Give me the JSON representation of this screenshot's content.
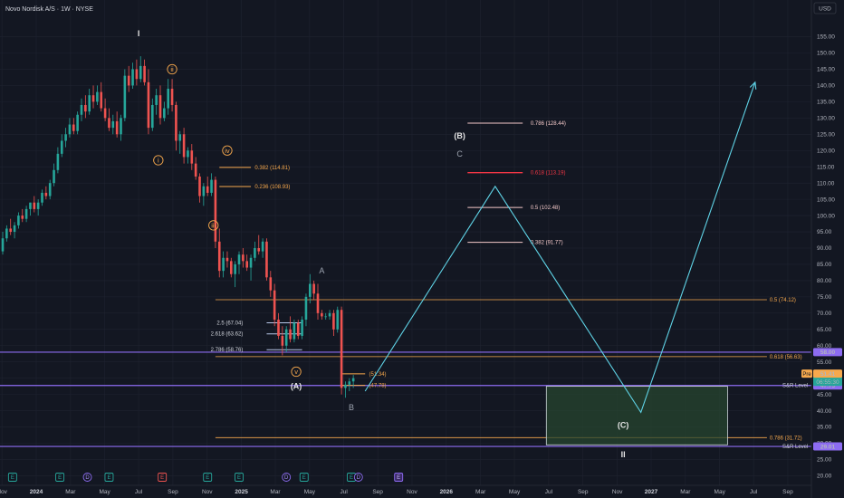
{
  "title": "Novo Nordisk A/S · 1W · NYSE",
  "currency": "USD",
  "colors": {
    "bg": "#131722",
    "up": "#26a69a",
    "down": "#ef5350",
    "orange": "#f7a94d",
    "purple": "#8d6cf2",
    "cyan": "#5fd3e6",
    "red": "#f23645",
    "grid": "#1f2330"
  },
  "chart_data": {
    "type": "candlestick",
    "ylim": [
      19,
      161
    ],
    "yticks": [
      20,
      25,
      30,
      35,
      40,
      45,
      50,
      55,
      60,
      65,
      70,
      75,
      80,
      85,
      90,
      95,
      100,
      105,
      110,
      115,
      120,
      125,
      130,
      135,
      140,
      145,
      150,
      155
    ],
    "xticks": [
      {
        "label": "Nov",
        "w": -0.2,
        "bold": false
      },
      {
        "label": "2024",
        "w": 8.5,
        "bold": true
      },
      {
        "label": "Mar",
        "w": 17.2,
        "bold": false
      },
      {
        "label": "May",
        "w": 25.9,
        "bold": false
      },
      {
        "label": "Jul",
        "w": 34.5,
        "bold": false
      },
      {
        "label": "Sep",
        "w": 43.2,
        "bold": false
      },
      {
        "label": "Nov",
        "w": 51.9,
        "bold": false
      },
      {
        "label": "2025",
        "w": 60.6,
        "bold": true
      },
      {
        "label": "Mar",
        "w": 69.2,
        "bold": false
      },
      {
        "label": "May",
        "w": 77.9,
        "bold": false
      },
      {
        "label": "Jul",
        "w": 86.6,
        "bold": false
      },
      {
        "label": "Sep",
        "w": 95.2,
        "bold": false
      },
      {
        "label": "Nov",
        "w": 103.9,
        "bold": false
      },
      {
        "label": "2026",
        "w": 112.6,
        "bold": true
      },
      {
        "label": "Mar",
        "w": 121.3,
        "bold": false
      },
      {
        "label": "May",
        "w": 129.9,
        "bold": false
      },
      {
        "label": "Jul",
        "w": 138.6,
        "bold": false
      },
      {
        "label": "Sep",
        "w": 147.3,
        "bold": false
      },
      {
        "label": "Nov",
        "w": 156,
        "bold": false
      },
      {
        "label": "2027",
        "w": 164.6,
        "bold": true
      },
      {
        "label": "Mar",
        "w": 173.3,
        "bold": false
      },
      {
        "label": "May",
        "w": 182,
        "bold": false
      },
      {
        "label": "Jul",
        "w": 190.6,
        "bold": false
      },
      {
        "label": "Sep",
        "w": 199.3,
        "bold": false
      }
    ],
    "candles": [
      [
        0,
        89,
        95,
        88,
        93
      ],
      [
        1,
        93,
        97,
        92,
        96
      ],
      [
        2,
        96,
        99,
        94,
        95
      ],
      [
        3,
        95,
        98,
        93,
        97
      ],
      [
        4,
        97,
        101,
        96,
        100
      ],
      [
        5,
        100,
        102,
        98,
        99
      ],
      [
        6,
        99,
        103,
        98,
        102
      ],
      [
        7,
        102,
        104,
        100,
        104
      ],
      [
        8,
        104,
        106,
        101,
        102
      ],
      [
        9,
        102,
        105,
        100,
        104
      ],
      [
        10,
        104,
        108,
        103,
        107
      ],
      [
        11,
        107,
        109,
        105,
        106
      ],
      [
        12,
        106,
        111,
        105,
        110
      ],
      [
        13,
        110,
        116,
        109,
        114
      ],
      [
        14,
        114,
        121,
        113,
        119
      ],
      [
        15,
        119,
        125,
        118,
        123
      ],
      [
        16,
        123,
        127,
        121,
        125
      ],
      [
        17,
        125,
        130,
        124,
        128
      ],
      [
        18,
        128,
        130,
        125,
        126
      ],
      [
        19,
        126,
        132,
        125,
        131
      ],
      [
        20,
        131,
        136,
        129,
        134
      ],
      [
        21,
        134,
        137,
        130,
        132
      ],
      [
        22,
        132,
        139,
        131,
        137
      ],
      [
        23,
        137,
        140,
        133,
        135
      ],
      [
        24,
        135,
        140,
        134,
        138
      ],
      [
        25,
        138,
        141,
        132,
        133
      ],
      [
        26,
        133,
        136,
        129,
        130
      ],
      [
        27,
        130,
        133,
        126,
        127
      ],
      [
        28,
        127,
        131,
        125,
        129
      ],
      [
        29,
        129,
        132,
        124,
        125
      ],
      [
        30,
        125,
        131,
        123,
        130
      ],
      [
        31,
        130,
        145,
        129,
        143
      ],
      [
        32,
        143,
        146,
        138,
        140
      ],
      [
        33,
        140,
        147,
        139,
        145
      ],
      [
        34,
        145,
        148,
        140,
        142
      ],
      [
        35,
        142,
        149,
        141,
        146
      ],
      [
        36,
        146,
        148,
        140,
        141
      ],
      [
        37,
        141,
        145,
        125,
        127
      ],
      [
        38,
        127,
        136,
        126,
        134
      ],
      [
        39,
        134,
        139,
        131,
        137
      ],
      [
        40,
        137,
        140,
        128,
        130
      ],
      [
        41,
        130,
        135,
        129,
        133
      ],
      [
        42,
        133,
        142,
        131,
        139
      ],
      [
        43,
        139,
        142,
        132,
        134
      ],
      [
        44,
        134,
        135,
        120,
        123
      ],
      [
        45,
        123,
        126,
        119,
        125
      ],
      [
        46,
        125,
        127,
        116,
        118
      ],
      [
        47,
        118,
        121,
        116,
        120
      ],
      [
        48,
        120,
        122,
        114,
        116
      ],
      [
        49,
        116,
        118,
        111,
        112
      ],
      [
        50,
        112,
        113,
        104,
        106
      ],
      [
        51,
        106,
        110,
        103,
        109
      ],
      [
        52,
        109,
        112,
        106,
        107
      ],
      [
        53,
        107,
        113,
        106,
        111
      ],
      [
        54,
        111,
        112,
        90,
        92
      ],
      [
        55,
        92,
        96,
        81,
        83
      ],
      [
        56,
        83,
        89,
        81,
        87
      ],
      [
        57,
        87,
        89,
        84,
        86
      ],
      [
        58,
        86,
        87,
        81,
        82
      ],
      [
        59,
        82,
        86,
        78,
        85
      ],
      [
        60,
        85,
        89,
        82,
        88
      ],
      [
        61,
        88,
        90,
        84,
        86
      ],
      [
        62,
        86,
        88,
        83,
        84
      ],
      [
        63,
        84,
        88,
        80,
        87
      ],
      [
        64,
        87,
        92,
        86,
        90
      ],
      [
        65,
        90,
        94,
        88,
        89
      ],
      [
        66,
        89,
        93,
        87,
        92
      ],
      [
        67,
        92,
        93,
        80,
        81
      ],
      [
        68,
        81,
        83,
        75,
        77
      ],
      [
        69,
        77,
        79,
        66,
        68
      ],
      [
        70,
        68,
        70,
        62,
        63
      ],
      [
        71,
        63,
        66,
        57,
        60
      ],
      [
        72,
        60,
        66,
        58,
        65
      ],
      [
        73,
        65,
        69,
        61,
        62
      ],
      [
        74,
        62,
        68,
        61,
        67
      ],
      [
        75,
        67,
        68,
        62,
        63
      ],
      [
        76,
        63,
        69,
        62,
        68
      ],
      [
        77,
        68,
        76,
        66,
        75
      ],
      [
        78,
        75,
        82,
        73,
        79
      ],
      [
        79,
        79,
        80,
        74,
        76
      ],
      [
        80,
        76,
        79,
        68,
        70
      ],
      [
        81,
        70,
        71,
        68,
        69
      ],
      [
        82,
        69,
        70,
        68,
        69
      ],
      [
        83,
        69,
        71,
        68,
        70
      ],
      [
        84,
        70,
        71,
        63,
        65
      ],
      [
        85,
        65,
        72,
        64,
        71
      ],
      [
        86,
        71,
        72,
        45,
        47
      ],
      [
        87,
        47,
        49,
        44,
        48
      ],
      [
        88,
        48,
        50,
        46,
        49
      ],
      [
        89,
        49,
        51,
        47,
        50
      ]
    ],
    "fib_levels": [
      {
        "label": "0.786 (128.44)",
        "value": 128.44,
        "w0": 118,
        "w1": 132,
        "color": "#f4c9c9",
        "label_w": 134
      },
      {
        "label": "0.618 (113.19)",
        "value": 113.19,
        "w0": 118,
        "w1": 132,
        "color": "#f23645",
        "label_w": 134
      },
      {
        "label": "0.5 (102.48)",
        "value": 102.48,
        "w0": 118,
        "w1": 132,
        "color": "#f4c9c9",
        "label_w": 134
      },
      {
        "label": "0.382 (91.77)",
        "value": 91.77,
        "w0": 118,
        "w1": 132,
        "color": "#f4c9c9",
        "label_w": 134
      },
      {
        "label": "0.382 (114.81)",
        "value": 114.81,
        "w0": 55,
        "w1": 63,
        "color": "#f7a94d",
        "label_w": 64
      },
      {
        "label": "0.236 (108.93)",
        "value": 108.93,
        "w0": 55,
        "w1": 63,
        "color": "#f7a94d",
        "label_w": 64
      },
      {
        "label": "2.5 (67.04)",
        "value": 67.04,
        "w0": 67,
        "w1": 76,
        "color": "#b7c7e8",
        "label_w": 61,
        "anchor": "end"
      },
      {
        "label": "2.618 (63.62)",
        "value": 63.62,
        "w0": 67,
        "w1": 76,
        "color": "#b7c7e8",
        "label_w": 61,
        "anchor": "end"
      },
      {
        "label": "2.786 (58.76)",
        "value": 58.76,
        "w0": 67,
        "w1": 76,
        "color": "#b7c7e8",
        "label_w": 61,
        "anchor": "end"
      },
      {
        "label": "(51.34)",
        "value": 51.34,
        "w0": 86,
        "w1": 92,
        "color": "#f7a94d",
        "label_w": 93
      },
      {
        "label": "(47.78)",
        "value": 47.78,
        "w0": 86,
        "w1": 92,
        "color": "#f7a94d",
        "label_w": 93
      }
    ],
    "long_levels": [
      {
        "label": "0.5 (74.12)",
        "value": 74.12,
        "color": "#f7a94d"
      },
      {
        "label": "0.618 (56.63)",
        "value": 56.63,
        "color": "#f7a94d"
      },
      {
        "label": "0.786 (31.72)",
        "value": 31.72,
        "color": "#f7a94d"
      }
    ],
    "purple_lines": [
      {
        "value": 58.0,
        "tag": "58.00",
        "text": ""
      },
      {
        "value": 47.75,
        "tag": "47.75",
        "text": "S&R Level"
      },
      {
        "value": 29.01,
        "tag": "29.01",
        "text": "S&R Level"
      }
    ],
    "projection": [
      [
        92,
        46
      ],
      [
        125,
        109
      ],
      [
        162,
        39.5
      ],
      [
        191,
        141
      ]
    ],
    "target_box": {
      "w0": 138,
      "w1": 184,
      "y0": 29.5,
      "y1": 47.5
    },
    "price": {
      "current": "50.95",
      "countdown": "06:55:30",
      "prev_close": "51.41"
    },
    "waves": [
      {
        "text": "I",
        "w": 34.5,
        "v": 156,
        "style": "plain"
      },
      {
        "text": "ii",
        "w": 43,
        "v": 145,
        "style": "circle"
      },
      {
        "text": "i",
        "w": 39.5,
        "v": 117,
        "style": "circle"
      },
      {
        "text": "iv",
        "w": 57,
        "v": 120,
        "style": "circle"
      },
      {
        "text": "iii",
        "w": 53.5,
        "v": 97,
        "style": "circle"
      },
      {
        "text": "v",
        "w": 74.5,
        "v": 52,
        "style": "circle"
      },
      {
        "text": "(A)",
        "w": 74.5,
        "v": 47.5,
        "style": "plain"
      },
      {
        "text": "A",
        "w": 81,
        "v": 83,
        "style": "gray"
      },
      {
        "text": "B",
        "w": 88.5,
        "v": 41,
        "style": "gray"
      },
      {
        "text": "(B)",
        "w": 116,
        "v": 124.5,
        "style": "plain"
      },
      {
        "text": "C",
        "w": 116,
        "v": 119,
        "style": "gray"
      },
      {
        "text": "(C)",
        "w": 157.5,
        "v": 35.5,
        "style": "plain"
      },
      {
        "text": "II",
        "w": 157.5,
        "v": 26.5,
        "style": "plain"
      }
    ],
    "events": [
      {
        "text": "E",
        "w": 2.5,
        "type": "E"
      },
      {
        "text": "E",
        "w": 14.5,
        "type": "E"
      },
      {
        "text": "D",
        "w": 21.5,
        "type": "D"
      },
      {
        "text": "E",
        "w": 27,
        "type": "E"
      },
      {
        "text": "E",
        "w": 40.5,
        "type": "Er"
      },
      {
        "text": "E",
        "w": 52,
        "type": "E"
      },
      {
        "text": "E",
        "w": 60,
        "type": "E"
      },
      {
        "text": "D",
        "w": 72,
        "type": "D"
      },
      {
        "text": "E",
        "w": 76.5,
        "type": "E"
      },
      {
        "text": "E",
        "w": 88.5,
        "type": "E"
      },
      {
        "text": "D",
        "w": 90.3,
        "type": "D"
      },
      {
        "text": "E",
        "w": 100.5,
        "type": "Ep"
      }
    ]
  }
}
